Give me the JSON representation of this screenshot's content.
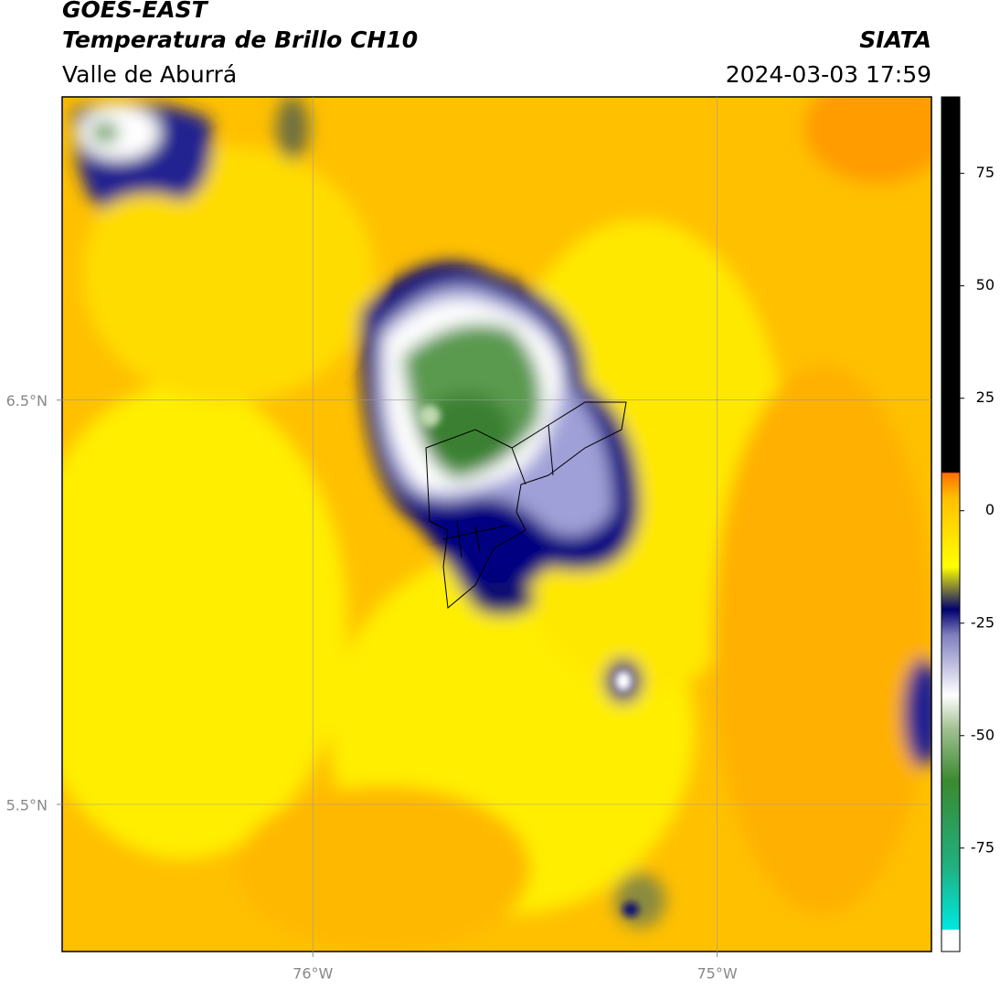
{
  "header": {
    "title": "GOES-EAST",
    "subtitle": "Temperatura de Brillo CH10",
    "region": "Valle de Aburrá",
    "source": "SIATA",
    "datetime": "2024-03-03 17:59"
  },
  "map": {
    "xlim": [
      -76.62,
      -74.47
    ],
    "ylim": [
      5.136,
      7.25
    ],
    "xticks": [
      {
        "value": -76,
        "label": "76°W"
      },
      {
        "value": -75,
        "label": "75°W"
      }
    ],
    "yticks": [
      {
        "value": 5.5,
        "label": "5.5°N"
      },
      {
        "value": 6.5,
        "label": "6.5°N"
      }
    ],
    "grid": true
  },
  "colorbar": {
    "lim": [
      -98,
      92
    ],
    "ticks": [
      -75,
      -50,
      -25,
      0,
      25,
      50,
      75
    ]
  }
}
